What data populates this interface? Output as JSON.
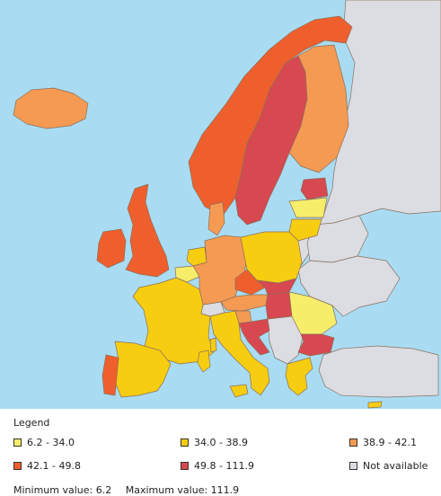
{
  "colors": {
    "sea": "#a9dcf3",
    "c1": "#f6ee6a",
    "c2": "#f7cd12",
    "c3": "#f59a52",
    "c4": "#ef5f2e",
    "c5": "#d84850",
    "nodata": "#dcdce3"
  },
  "legend": {
    "title": "Legend",
    "items": [
      {
        "label": "6.2 - 34.0",
        "class": "c1"
      },
      {
        "label": "34.0 - 38.9",
        "class": "c2"
      },
      {
        "label": "38.9 - 42.1",
        "class": "c3"
      },
      {
        "label": "42.1 - 49.8",
        "class": "c4"
      },
      {
        "label": "49.8 - 111.9",
        "class": "c5"
      },
      {
        "label": "Not available",
        "class": "nodata"
      }
    ]
  },
  "stats": {
    "min": "Minimum value: 6.2",
    "max": "Maximum value: 111.9"
  },
  "regions": [
    {
      "id": "iceland",
      "class": "c3"
    },
    {
      "id": "norway",
      "class": "c4"
    },
    {
      "id": "sweden",
      "class": "c5"
    },
    {
      "id": "finland",
      "class": "c3"
    },
    {
      "id": "estonia",
      "class": "c5"
    },
    {
      "id": "latvia",
      "class": "c1"
    },
    {
      "id": "lithuania",
      "class": "c2"
    },
    {
      "id": "uk",
      "class": "c4"
    },
    {
      "id": "ireland",
      "class": "c4"
    },
    {
      "id": "denmark",
      "class": "c3"
    },
    {
      "id": "netherlands",
      "class": "c2"
    },
    {
      "id": "belgium",
      "class": "c1"
    },
    {
      "id": "germany",
      "class": "c3"
    },
    {
      "id": "poland",
      "class": "c2"
    },
    {
      "id": "czechia",
      "class": "c4"
    },
    {
      "id": "slovakia",
      "class": "c5"
    },
    {
      "id": "austria",
      "class": "c3"
    },
    {
      "id": "switzerland",
      "class": "nodata"
    },
    {
      "id": "hungary",
      "class": "c5"
    },
    {
      "id": "romania",
      "class": "c1"
    },
    {
      "id": "bulgaria",
      "class": "c5"
    },
    {
      "id": "greece",
      "class": "c2"
    },
    {
      "id": "france",
      "class": "c2"
    },
    {
      "id": "spain",
      "class": "c2"
    },
    {
      "id": "portugal",
      "class": "c4"
    },
    {
      "id": "italy",
      "class": "c2"
    },
    {
      "id": "slovenia",
      "class": "c3"
    },
    {
      "id": "croatia",
      "class": "c5"
    },
    {
      "id": "cyprus",
      "class": "c2"
    },
    {
      "id": "balkans",
      "class": "nodata"
    },
    {
      "id": "russia-east",
      "class": "nodata"
    },
    {
      "id": "belarus",
      "class": "nodata"
    },
    {
      "id": "ukraine",
      "class": "nodata"
    },
    {
      "id": "turkey",
      "class": "nodata"
    }
  ]
}
